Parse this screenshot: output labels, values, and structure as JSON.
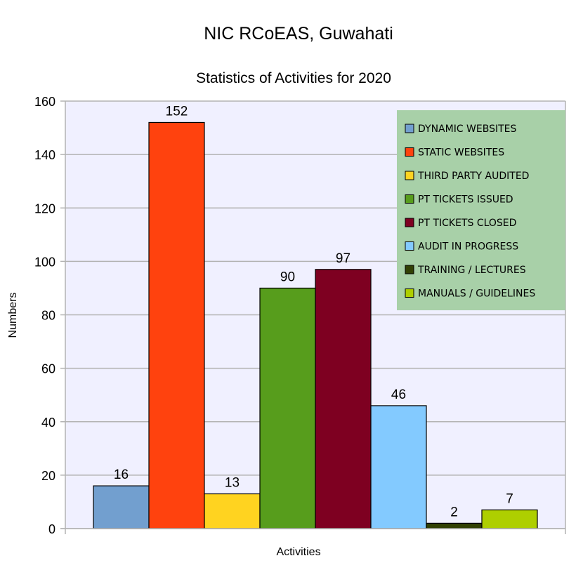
{
  "chart_data": {
    "type": "bar",
    "title": "NIC RCoEAS, Guwahati",
    "subtitle": "Statistics of Activities for 2020",
    "xlabel": "Activities",
    "ylabel": "Numbers",
    "ylim": [
      0,
      160
    ],
    "yticks": [
      0,
      20,
      40,
      60,
      80,
      100,
      120,
      140,
      160
    ],
    "grid": true,
    "legend_position": "top-right",
    "series": [
      {
        "name": "DYNAMIC WEBSITES",
        "value": 16,
        "color": "#729fcf"
      },
      {
        "name": "STATIC WEBSITES",
        "value": 152,
        "color": "#ff420e"
      },
      {
        "name": "THIRD PARTY AUDITED",
        "value": 13,
        "color": "#ffd320"
      },
      {
        "name": "PT TICKETS ISSUED",
        "value": 90,
        "color": "#579d1c"
      },
      {
        "name": "PT TICKETS CLOSED",
        "value": 97,
        "color": "#7e0021"
      },
      {
        "name": "AUDIT IN PROGRESS",
        "value": 46,
        "color": "#83caff"
      },
      {
        "name": "TRAINING / LECTURES",
        "value": 2,
        "color": "#314004"
      },
      {
        "name": "MANUALS / GUIDELINES",
        "value": 7,
        "color": "#aecf00"
      }
    ],
    "colors": {
      "plot_background": "#f0f0ff",
      "legend_background": "#a8d0a8",
      "grid": "#b3b3b3"
    }
  }
}
